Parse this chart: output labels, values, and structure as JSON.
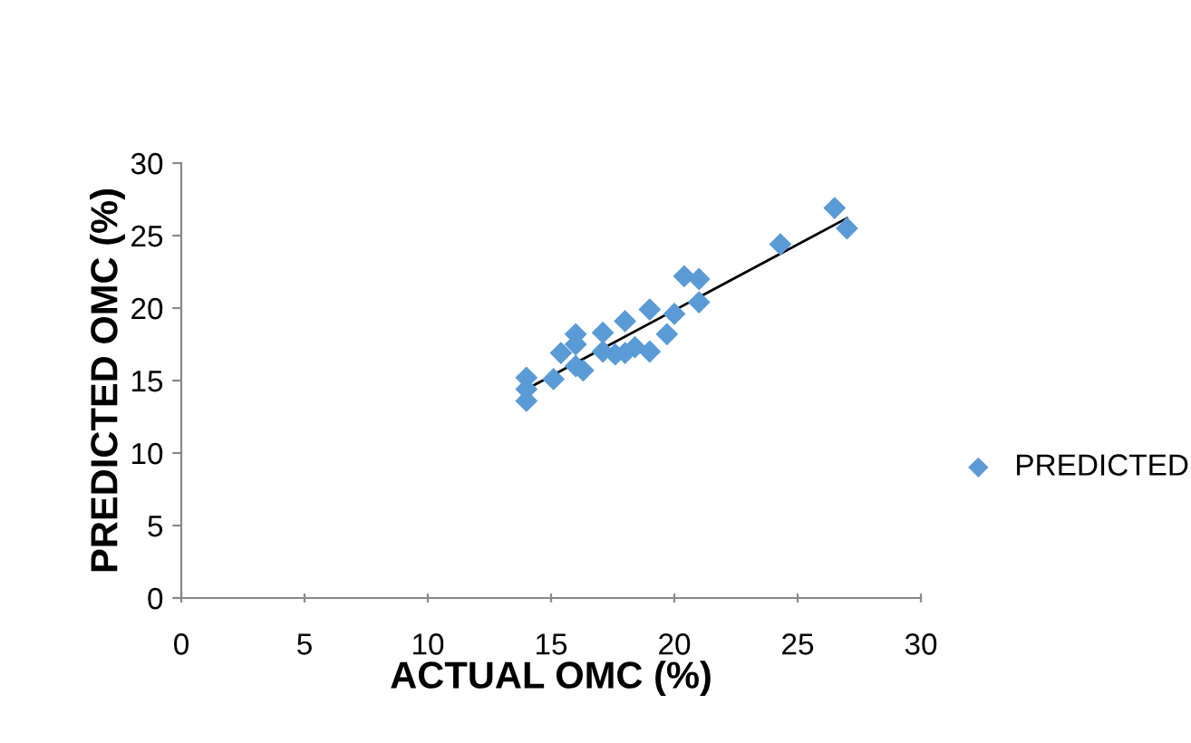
{
  "chart_data": {
    "type": "scatter",
    "xlabel": "ACTUAL OMC (%)",
    "ylabel": "PREDICTED OMC (%)",
    "xlim": [
      0,
      30
    ],
    "ylim": [
      0,
      30
    ],
    "xticks": [
      0,
      5,
      10,
      15,
      20,
      25,
      30
    ],
    "yticks": [
      0,
      5,
      10,
      15,
      20,
      25,
      30
    ],
    "grid": false,
    "legend": "right",
    "series": [
      {
        "name": "PREDICTED",
        "color": "#5b9bd5",
        "marker": "diamond",
        "x": [
          14.0,
          14.0,
          14.0,
          15.1,
          15.4,
          16.0,
          16.0,
          16.0,
          16.3,
          17.1,
          17.1,
          17.6,
          18.0,
          18.0,
          18.4,
          19.0,
          19.0,
          19.7,
          20.0,
          20.4,
          21.0,
          21.0,
          24.3,
          26.5,
          27.0
        ],
        "values": [
          15.2,
          13.6,
          14.4,
          15.1,
          16.9,
          18.2,
          17.5,
          16.0,
          15.7,
          18.3,
          17.0,
          16.8,
          19.1,
          16.9,
          17.3,
          17.0,
          19.9,
          18.2,
          19.6,
          22.2,
          22.0,
          20.4,
          24.4,
          26.9,
          25.5
        ]
      },
      {
        "color": "#000000",
        "type": "line",
        "marker": "none",
        "x": [
          14.0,
          27.0
        ],
        "values": [
          14.4,
          26.2
        ]
      }
    ]
  }
}
